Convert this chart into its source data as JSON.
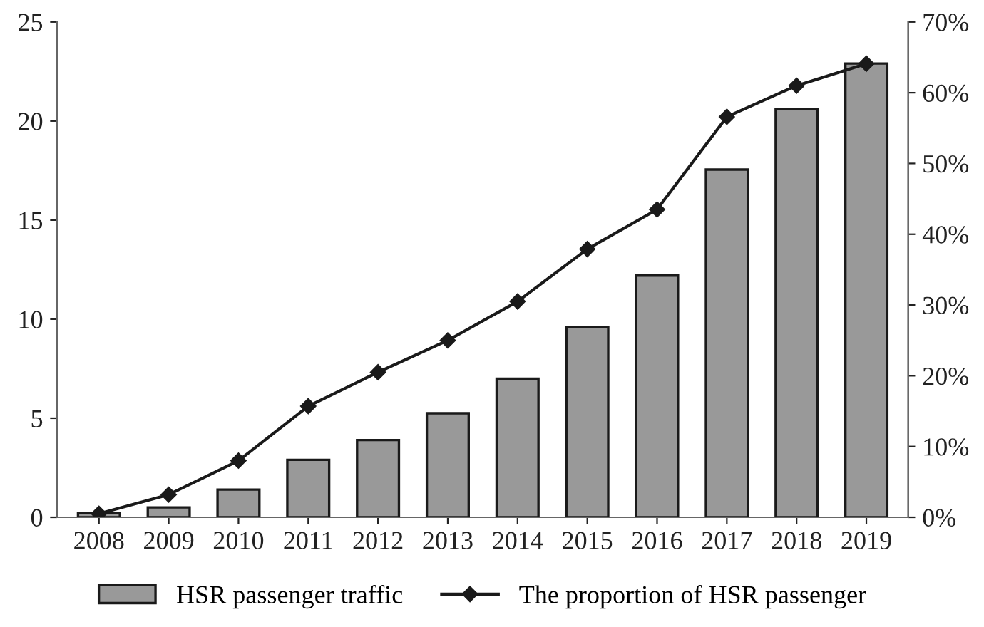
{
  "chart_data": {
    "type": "bar",
    "categories": [
      "2008",
      "2009",
      "2010",
      "2011",
      "2012",
      "2013",
      "2014",
      "2015",
      "2016",
      "2017",
      "2018",
      "2019"
    ],
    "series": [
      {
        "name": "HSR passenger traffic",
        "color": "#999999",
        "values": [
          0.2,
          0.5,
          1.4,
          2.9,
          3.9,
          5.25,
          7.0,
          9.6,
          12.2,
          17.55,
          20.6,
          22.9
        ]
      },
      {
        "name": "The proportion of HSR passenger",
        "type": "line",
        "axis": "y2",
        "color": "#1a1a1a",
        "marker": "diamond",
        "values": [
          0.5,
          3.2,
          8.0,
          15.7,
          20.5,
          25.0,
          30.5,
          37.9,
          43.5,
          56.6,
          61.0,
          64.1
        ]
      }
    ],
    "ylim": [
      0,
      25
    ],
    "yticks": [
      0,
      5,
      10,
      15,
      20,
      25
    ],
    "y2lim": [
      0,
      70
    ],
    "y2ticks": [
      {
        "value": 0,
        "label": "0%"
      },
      {
        "value": 10,
        "label": "10%"
      },
      {
        "value": 20,
        "label": "20%"
      },
      {
        "value": 30,
        "label": "30%"
      },
      {
        "value": 40,
        "label": "40%"
      },
      {
        "value": 50,
        "label": "50%"
      },
      {
        "value": 60,
        "label": "60%"
      },
      {
        "value": 70,
        "label": "70%"
      }
    ],
    "grid": false,
    "legend": "bottom"
  }
}
